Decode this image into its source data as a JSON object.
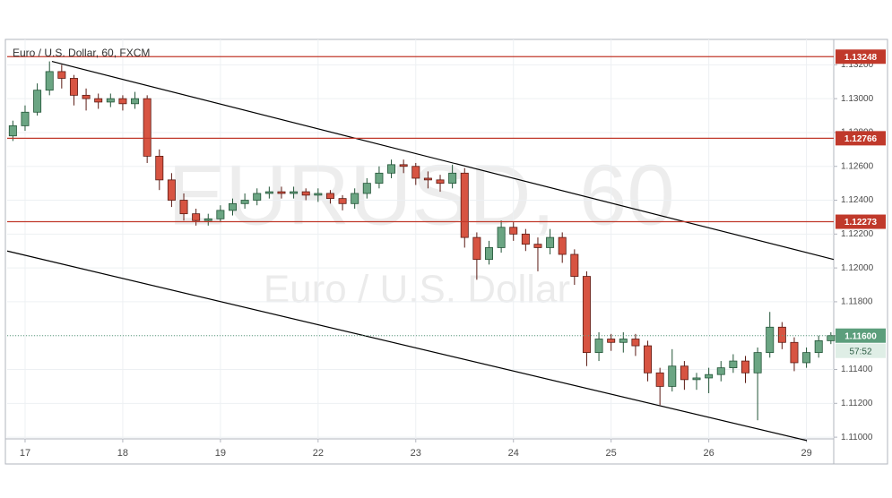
{
  "chart_data": {
    "type": "candlestick",
    "title": "Euro / U.S. Dollar, 60, FXCM",
    "watermark": {
      "symbol": "EURUSD, 60",
      "description": "Euro / U.S. Dollar"
    },
    "x": [
      -3,
      0,
      3,
      6,
      9,
      12,
      15,
      18,
      21,
      24,
      27,
      30,
      33,
      36,
      39,
      42,
      45,
      48,
      51,
      54,
      57,
      60,
      63,
      66,
      69,
      72,
      75,
      78,
      81,
      84,
      87,
      90,
      93,
      96,
      99,
      102,
      105,
      108,
      111,
      114,
      117,
      120,
      123,
      126,
      129,
      132,
      135,
      138,
      141,
      144,
      147,
      150,
      153,
      156,
      159,
      162,
      165,
      168,
      171,
      174,
      177,
      180,
      183,
      186,
      189,
      192,
      195,
      198
    ],
    "open": [
      1.1278,
      1.1284,
      1.1292,
      1.1305,
      1.1316,
      1.1312,
      1.1302,
      1.13,
      1.1298,
      1.13,
      1.1297,
      1.13,
      1.1266,
      1.1252,
      1.124,
      1.1232,
      1.1228,
      1.1229,
      1.1234,
      1.1238,
      1.124,
      1.1244,
      1.1245,
      1.1244,
      1.1245,
      1.1243,
      1.1244,
      1.1241,
      1.1238,
      1.1244,
      1.125,
      1.1256,
      1.1261,
      1.126,
      1.1253,
      1.1252,
      1.125,
      1.1256,
      1.1218,
      1.1205,
      1.1212,
      1.1224,
      1.122,
      1.1214,
      1.1212,
      1.1218,
      1.1208,
      1.1195,
      1.115,
      1.1158,
      1.1156,
      1.1158,
      1.1154,
      1.1138,
      1.113,
      1.1142,
      1.1134,
      1.1135,
      1.1137,
      1.1141,
      1.1145,
      1.1138,
      1.115,
      1.1165,
      1.1156,
      1.1144,
      1.115,
      1.1157
    ],
    "high": [
      1.1287,
      1.1296,
      1.1309,
      1.1322,
      1.132,
      1.1314,
      1.1306,
      1.1303,
      1.1303,
      1.1302,
      1.1304,
      1.1302,
      1.127,
      1.1256,
      1.1244,
      1.1235,
      1.1232,
      1.1237,
      1.1241,
      1.1244,
      1.1247,
      1.1248,
      1.1248,
      1.1248,
      1.1247,
      1.1247,
      1.1246,
      1.1243,
      1.1247,
      1.1253,
      1.126,
      1.1264,
      1.1264,
      1.1262,
      1.1257,
      1.1255,
      1.1261,
      1.1259,
      1.1221,
      1.1216,
      1.1228,
      1.1227,
      1.1223,
      1.1218,
      1.1223,
      1.1221,
      1.1211,
      1.1198,
      1.1162,
      1.1161,
      1.1162,
      1.1161,
      1.1157,
      1.1141,
      1.1152,
      1.1145,
      1.1138,
      1.1141,
      1.1145,
      1.1149,
      1.1148,
      1.1153,
      1.1174,
      1.1168,
      1.1159,
      1.1153,
      1.116,
      1.1162
    ],
    "low": [
      1.1275,
      1.1281,
      1.129,
      1.1302,
      1.1306,
      1.1296,
      1.1293,
      1.1294,
      1.1295,
      1.1293,
      1.1294,
      1.1262,
      1.1246,
      1.1236,
      1.1228,
      1.1225,
      1.1225,
      1.1227,
      1.1231,
      1.1235,
      1.1237,
      1.1241,
      1.1241,
      1.1241,
      1.124,
      1.1239,
      1.1238,
      1.1234,
      1.1235,
      1.1241,
      1.1247,
      1.1253,
      1.1256,
      1.1249,
      1.1247,
      1.1245,
      1.1247,
      1.1212,
      1.1193,
      1.1202,
      1.1209,
      1.1216,
      1.121,
      1.1198,
      1.1208,
      1.1203,
      1.119,
      1.1142,
      1.1145,
      1.1151,
      1.115,
      1.1148,
      1.1133,
      1.1119,
      1.1127,
      1.1128,
      1.1128,
      1.1126,
      1.1133,
      1.1138,
      1.1132,
      1.111,
      1.1147,
      1.1152,
      1.1139,
      1.1141,
      1.1147,
      1.1155
    ],
    "close": [
      1.1284,
      1.1292,
      1.1305,
      1.1316,
      1.1312,
      1.1302,
      1.13,
      1.1298,
      1.13,
      1.1297,
      1.13,
      1.1266,
      1.1252,
      1.124,
      1.1232,
      1.1228,
      1.1229,
      1.1234,
      1.1238,
      1.124,
      1.1244,
      1.1245,
      1.1244,
      1.1245,
      1.1243,
      1.1244,
      1.1241,
      1.1238,
      1.1244,
      1.125,
      1.1256,
      1.1261,
      1.126,
      1.1253,
      1.1252,
      1.125,
      1.1256,
      1.1218,
      1.1205,
      1.1212,
      1.1224,
      1.122,
      1.1214,
      1.1212,
      1.1218,
      1.1208,
      1.1195,
      1.115,
      1.1158,
      1.1156,
      1.1158,
      1.1154,
      1.1138,
      1.113,
      1.1142,
      1.1134,
      1.1135,
      1.1137,
      1.1141,
      1.1145,
      1.1138,
      1.115,
      1.1165,
      1.1156,
      1.1144,
      1.115,
      1.1157,
      1.116
    ],
    "up_color": "#6ba583",
    "down_color": "#d75442",
    "xlim": [
      -4.4,
      198.7
    ],
    "xticks": [
      {
        "value": 0,
        "label": "17"
      },
      {
        "value": 24,
        "label": "18"
      },
      {
        "value": 48,
        "label": "19"
      },
      {
        "value": 72,
        "label": "22"
      },
      {
        "value": 96,
        "label": "23"
      },
      {
        "value": 120,
        "label": "24"
      },
      {
        "value": 144,
        "label": "25"
      },
      {
        "value": 168,
        "label": "26"
      },
      {
        "value": 192,
        "label": "29"
      }
    ],
    "ylim": [
      1.1099,
      1.1335
    ],
    "yticks": [
      {
        "value": 1.11,
        "label": "1.11000"
      },
      {
        "value": 1.112,
        "label": "1.11200"
      },
      {
        "value": 1.114,
        "label": "1.11400"
      },
      {
        "value": 1.116,
        "label": "1.11600"
      },
      {
        "value": 1.118,
        "label": "1.11800"
      },
      {
        "value": 1.12,
        "label": "1.12000"
      },
      {
        "value": 1.122,
        "label": "1.12200"
      },
      {
        "value": 1.124,
        "label": "1.12400"
      },
      {
        "value": 1.126,
        "label": "1.12600"
      },
      {
        "value": 1.128,
        "label": "1.12800"
      },
      {
        "value": 1.13,
        "label": "1.13000"
      },
      {
        "value": 1.132,
        "label": "1.13200"
      }
    ],
    "grid": true,
    "levels": [
      1.13248,
      1.12766,
      1.12273
    ],
    "level_color": "#c0392b",
    "last_price": {
      "value": 1.116,
      "label": "1.11600"
    },
    "countdown": "57:52",
    "channel_lines": [
      {
        "x": [
          6.6,
          198.7
        ],
        "y": [
          1.1322,
          1.1205
        ]
      },
      {
        "x": [
          -4.4,
          192.1
        ],
        "y": [
          1.121,
          1.1098
        ]
      }
    ]
  }
}
